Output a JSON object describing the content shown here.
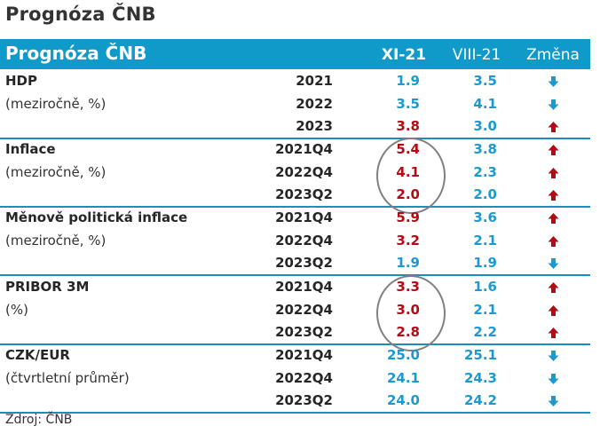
{
  "page": {
    "title": "Prognóza ČNB"
  },
  "table": {
    "header": {
      "title": "Prognóza ČNB",
      "col_new": "XI-21",
      "col_old": "VIII-21",
      "col_change": "Změna"
    },
    "colors": {
      "bar": "#0f9ac9",
      "up": "#b40a14",
      "down": "#1a9ad0",
      "rule": "#1a8fb8"
    },
    "sections": [
      {
        "label": "HDP",
        "sub": "(meziročně, %)",
        "circled": false,
        "rows": [
          {
            "period": "2021",
            "new": "1.9",
            "old": "3.5",
            "change": "down"
          },
          {
            "period": "2022",
            "new": "3.5",
            "old": "4.1",
            "change": "down"
          },
          {
            "period": "2023",
            "new": "3.8",
            "old": "3.0",
            "change": "up"
          }
        ]
      },
      {
        "label": "Inflace",
        "sub": "(meziročně, %)",
        "circled": true,
        "rows": [
          {
            "period": "2021Q4",
            "new": "5.4",
            "old": "3.8",
            "change": "up"
          },
          {
            "period": "2022Q4",
            "new": "4.1",
            "old": "2.3",
            "change": "up"
          },
          {
            "period": "2023Q2",
            "new": "2.0",
            "old": "2.0",
            "change": "up"
          }
        ]
      },
      {
        "label": "Měnově politická inflace",
        "sub": "(meziročně, %)",
        "circled": false,
        "rows": [
          {
            "period": "2021Q4",
            "new": "5.9",
            "old": "3.6",
            "change": "up"
          },
          {
            "period": "2022Q4",
            "new": "3.2",
            "old": "2.1",
            "change": "up"
          },
          {
            "period": "2023Q2",
            "new": "1.9",
            "old": "1.9",
            "change": "down"
          }
        ]
      },
      {
        "label": "PRIBOR 3M",
        "sub": "(%)",
        "circled": true,
        "rows": [
          {
            "period": "2021Q4",
            "new": "3.3",
            "old": "1.6",
            "change": "up"
          },
          {
            "period": "2022Q4",
            "new": "3.0",
            "old": "2.1",
            "change": "up"
          },
          {
            "period": "2023Q2",
            "new": "2.8",
            "old": "2.2",
            "change": "up"
          }
        ]
      },
      {
        "label": "CZK/EUR",
        "sub": "(čtvrtletní průměr)",
        "circled": false,
        "rows": [
          {
            "period": "2021Q4",
            "new": "25.0",
            "old": "25.1",
            "change": "down"
          },
          {
            "period": "2022Q4",
            "new": "24.1",
            "old": "24.3",
            "change": "down"
          },
          {
            "period": "2023Q2",
            "new": "24.0",
            "old": "24.2",
            "change": "down"
          }
        ]
      }
    ]
  },
  "footer": {
    "source": "Zdroj: ČNB"
  }
}
